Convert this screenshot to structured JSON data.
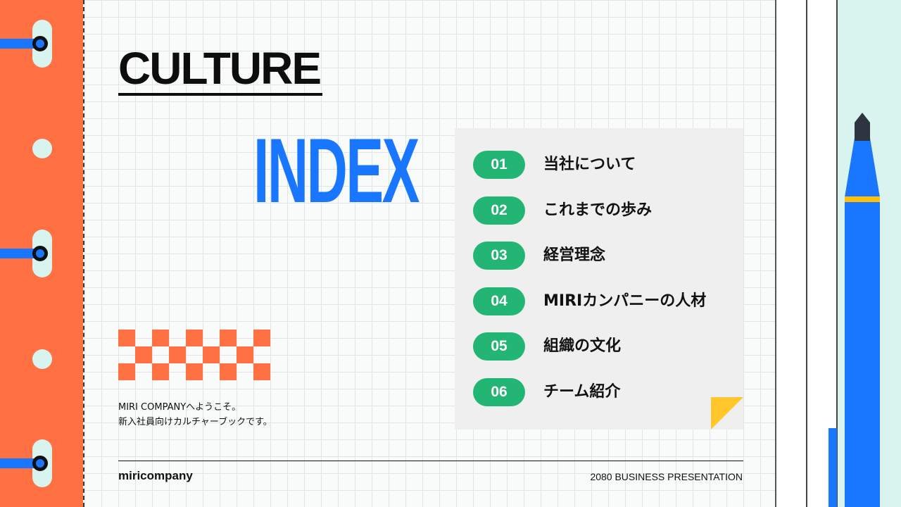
{
  "title": "CULTURE",
  "subtitle": "INDEX",
  "intro": {
    "line1": "MIRI COMPANYへようこそ。",
    "line2": "新入社員向けカルチャーブックです。"
  },
  "index_items": [
    {
      "number": "01",
      "label": "当社について"
    },
    {
      "number": "02",
      "label": "これまでの歩み"
    },
    {
      "number": "03",
      "label": "経営理念"
    },
    {
      "number": "04",
      "label": "MIRIカンパニーの人材"
    },
    {
      "number": "05",
      "label": "組織の文化"
    },
    {
      "number": "06",
      "label": "チーム紹介"
    }
  ],
  "footer": {
    "brand": "miricompany",
    "right": "2080 BUSINESS PRESENTATION"
  },
  "colors": {
    "accent_orange": "#ff7043",
    "accent_blue": "#1976ff",
    "badge_green": "#22b573",
    "fold_yellow": "#ffc72c"
  }
}
